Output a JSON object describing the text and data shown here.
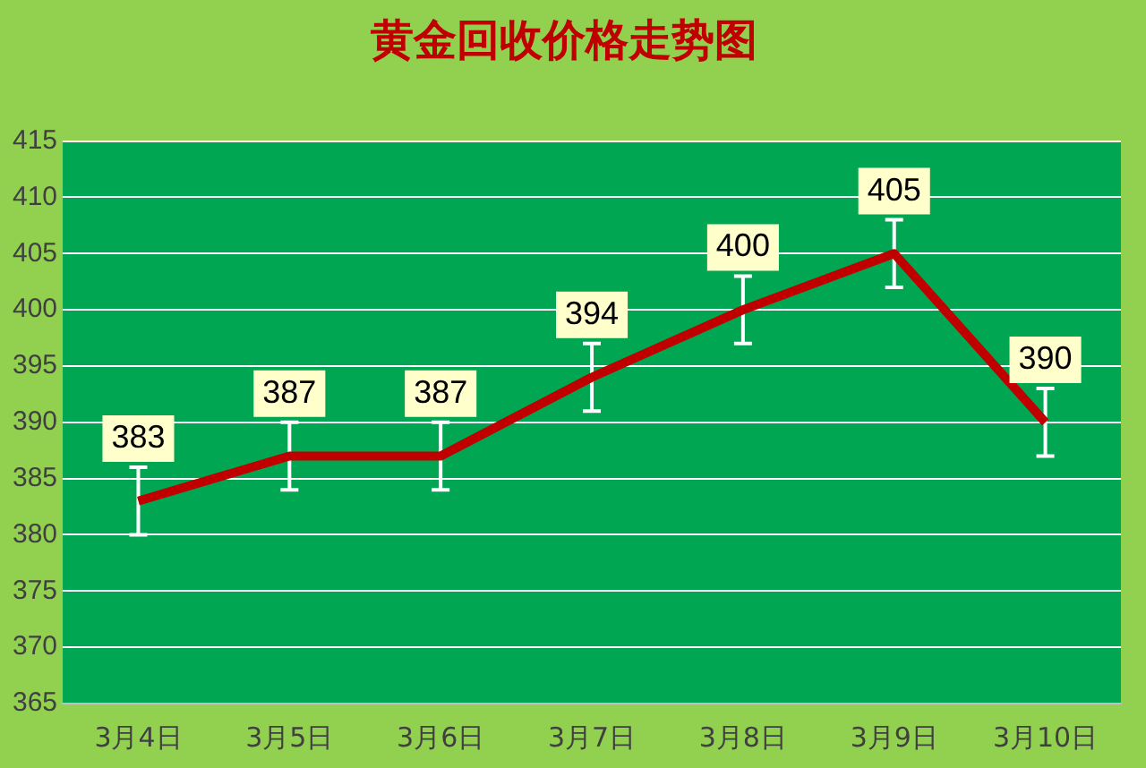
{
  "chart_data": {
    "type": "line",
    "title": "黄金回收价格走势图",
    "categories": [
      "3月4日",
      "3月5日",
      "3月6日",
      "3月7日",
      "3月8日",
      "3月9日",
      "3月10日"
    ],
    "series": [
      {
        "color": "#c00000",
        "values": [
          383,
          387,
          387,
          394,
          400,
          405,
          390
        ],
        "errors": [
          3,
          3,
          3,
          3,
          3,
          3,
          3
        ]
      }
    ],
    "ylim": [
      365,
      415
    ],
    "yticks": [
      365,
      370,
      375,
      380,
      385,
      390,
      395,
      400,
      405,
      410,
      415
    ],
    "grid": "y",
    "legend": false,
    "marker": "none",
    "line_style": "solid",
    "data_labels": true
  }
}
